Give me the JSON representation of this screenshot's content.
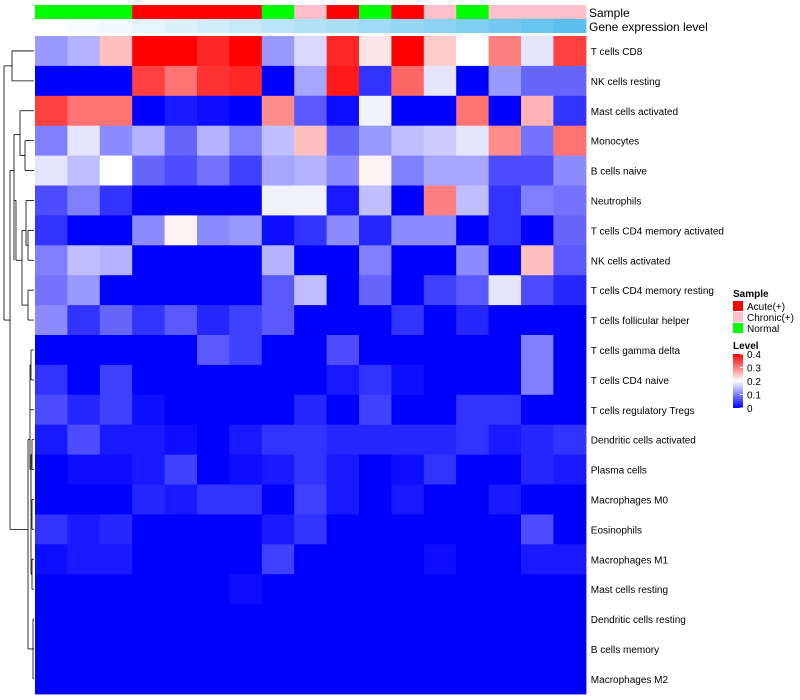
{
  "chart_data": {
    "type": "heatmap",
    "annotation_labels": {
      "sample": "Sample",
      "expression": "Gene expression level"
    },
    "samples": [
      "Normal",
      "Normal",
      "Normal",
      "Acute(+)",
      "Acute(+)",
      "Acute(+)",
      "Acute(+)",
      "Normal",
      "Chronic(+)",
      "Acute(+)",
      "Normal",
      "Acute(+)",
      "Chronic(+)",
      "Normal",
      "Chronic(+)",
      "Chronic(+)",
      "Chronic(+)"
    ],
    "expression_levels": [
      0.0,
      0.03,
      0.06,
      0.1,
      0.14,
      0.18,
      0.22,
      0.26,
      0.3,
      0.34,
      0.38,
      0.42,
      0.46,
      0.5,
      0.55,
      0.6,
      0.65
    ],
    "rows": [
      "T cells CD8",
      "NK cells resting",
      "Mast cells activated",
      "Monocytes",
      "B cells naive",
      "Neutrophils",
      "T cells CD4 memory activated",
      "NK cells activated",
      "T cells CD4 memory resting",
      "T cells follicular helper",
      "T cells gamma delta",
      "T cells CD4 naive",
      "T cells regulatory  Tregs",
      "Dendritic cells activated",
      "Plasma cells",
      "Macrophages M0",
      "Eosinophils",
      "Macrophages M1",
      "Mast cells resting",
      "Dendritic cells resting",
      "B cells memory",
      "Macrophages M2"
    ],
    "values": [
      [
        0.12,
        0.14,
        0.25,
        0.4,
        0.4,
        0.37,
        0.4,
        0.12,
        0.17,
        0.37,
        0.22,
        0.4,
        0.24,
        0.2,
        0.3,
        0.18,
        0.35
      ],
      [
        0.0,
        0.0,
        0.0,
        0.35,
        0.31,
        0.36,
        0.37,
        0.0,
        0.13,
        0.38,
        0.04,
        0.32,
        0.18,
        0.0,
        0.12,
        0.08,
        0.08
      ],
      [
        0.35,
        0.31,
        0.31,
        0.0,
        0.02,
        0.01,
        0.0,
        0.29,
        0.07,
        0.01,
        0.19,
        0.0,
        0.0,
        0.31,
        0.0,
        0.26,
        0.04
      ],
      [
        0.1,
        0.18,
        0.11,
        0.14,
        0.08,
        0.14,
        0.1,
        0.15,
        0.25,
        0.08,
        0.12,
        0.15,
        0.16,
        0.18,
        0.29,
        0.09,
        0.31
      ],
      [
        0.18,
        0.15,
        0.2,
        0.08,
        0.06,
        0.09,
        0.05,
        0.13,
        0.14,
        0.11,
        0.21,
        0.1,
        0.13,
        0.13,
        0.06,
        0.06,
        0.11
      ],
      [
        0.06,
        0.1,
        0.04,
        0.0,
        0.0,
        0.0,
        0.0,
        0.19,
        0.19,
        0.02,
        0.15,
        0.0,
        0.3,
        0.15,
        0.04,
        0.1,
        0.09
      ],
      [
        0.04,
        0.0,
        0.0,
        0.11,
        0.21,
        0.11,
        0.12,
        0.01,
        0.04,
        0.11,
        0.03,
        0.11,
        0.11,
        0.0,
        0.04,
        0.0,
        0.08
      ],
      [
        0.1,
        0.15,
        0.14,
        0.0,
        0.0,
        0.0,
        0.0,
        0.14,
        0.0,
        0.0,
        0.1,
        0.0,
        0.0,
        0.11,
        0.0,
        0.25,
        0.07
      ],
      [
        0.09,
        0.12,
        0.0,
        0.0,
        0.0,
        0.0,
        0.0,
        0.07,
        0.15,
        0.0,
        0.08,
        0.0,
        0.05,
        0.07,
        0.18,
        0.06,
        0.03
      ],
      [
        0.11,
        0.04,
        0.08,
        0.04,
        0.07,
        0.03,
        0.05,
        0.07,
        0.0,
        0.0,
        0.0,
        0.04,
        0.0,
        0.03,
        0.0,
        0.0,
        0.0
      ],
      [
        0.0,
        0.0,
        0.0,
        0.0,
        0.0,
        0.07,
        0.05,
        0.0,
        0.0,
        0.06,
        0.0,
        0.0,
        0.0,
        0.0,
        0.0,
        0.1,
        0.0
      ],
      [
        0.04,
        0.0,
        0.05,
        0.0,
        0.0,
        0.0,
        0.0,
        0.0,
        0.0,
        0.02,
        0.04,
        0.01,
        0.0,
        0.0,
        0.0,
        0.1,
        0.0
      ],
      [
        0.06,
        0.03,
        0.05,
        0.01,
        0.0,
        0.0,
        0.0,
        0.0,
        0.03,
        0.0,
        0.05,
        0.0,
        0.0,
        0.04,
        0.04,
        0.0,
        0.0
      ],
      [
        0.02,
        0.06,
        0.02,
        0.02,
        0.01,
        0.0,
        0.02,
        0.04,
        0.04,
        0.03,
        0.03,
        0.03,
        0.03,
        0.04,
        0.02,
        0.03,
        0.04
      ],
      [
        0.0,
        0.01,
        0.01,
        0.02,
        0.05,
        0.0,
        0.01,
        0.02,
        0.04,
        0.02,
        0.0,
        0.01,
        0.04,
        0.0,
        0.0,
        0.03,
        0.02
      ],
      [
        0.0,
        0.0,
        0.0,
        0.03,
        0.02,
        0.04,
        0.04,
        0.0,
        0.05,
        0.02,
        0.0,
        0.02,
        0.0,
        0.0,
        0.02,
        0.0,
        0.0
      ],
      [
        0.04,
        0.02,
        0.03,
        0.0,
        0.0,
        0.0,
        0.0,
        0.02,
        0.04,
        0.0,
        0.0,
        0.0,
        0.0,
        0.0,
        0.0,
        0.06,
        0.0
      ],
      [
        0.01,
        0.02,
        0.02,
        0.0,
        0.0,
        0.0,
        0.0,
        0.05,
        0.0,
        0.0,
        0.0,
        0.0,
        0.01,
        0.0,
        0.0,
        0.02,
        0.02
      ],
      [
        0.0,
        0.0,
        0.0,
        0.0,
        0.0,
        0.0,
        0.01,
        0.0,
        0.0,
        0.0,
        0.0,
        0.0,
        0.0,
        0.0,
        0.0,
        0.0,
        0.0
      ],
      [
        0.0,
        0.0,
        0.0,
        0.0,
        0.0,
        0.0,
        0.0,
        0.0,
        0.0,
        0.0,
        0.0,
        0.0,
        0.0,
        0.0,
        0.0,
        0.0,
        0.0
      ],
      [
        0.0,
        0.0,
        0.0,
        0.0,
        0.0,
        0.0,
        0.0,
        0.0,
        0.0,
        0.0,
        0.0,
        0.0,
        0.0,
        0.0,
        0.0,
        0.0,
        0.0
      ],
      [
        0.0,
        0.0,
        0.0,
        0.0,
        0.0,
        0.0,
        0.0,
        0.0,
        0.0,
        0.0,
        0.0,
        0.0,
        0.0,
        0.0,
        0.0,
        0.0,
        0.0
      ]
    ],
    "color_scale": {
      "min": 0,
      "mid": 0.2,
      "max": 0.4,
      "low": "#0000FF",
      "mid_color": "#FFFFFF",
      "high": "#FF0000"
    },
    "legend": {
      "sample_title": "Sample",
      "sample_items": [
        {
          "label": "Acute(+)",
          "color": "#FF0000"
        },
        {
          "label": "Chronic(+)",
          "color": "#FFC0CB"
        },
        {
          "label": "Normal",
          "color": "#00FF00"
        }
      ],
      "level_title": "Level",
      "level_ticks": [
        "0.4",
        "0.3",
        "0.2",
        "0.1",
        "0"
      ],
      "placement": "right"
    },
    "dendrogram": "rows"
  }
}
